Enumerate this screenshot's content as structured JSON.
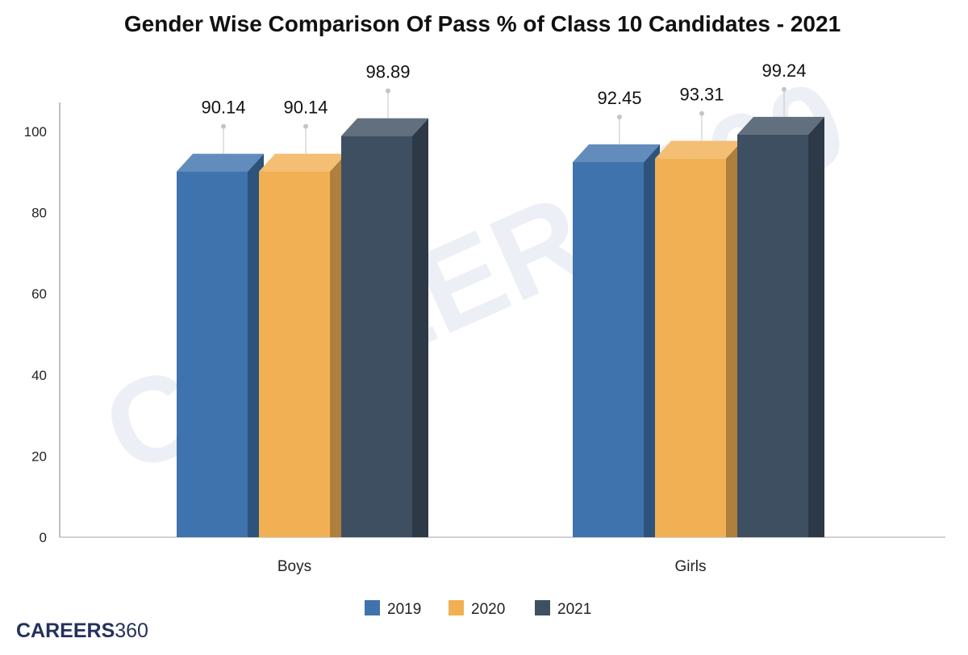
{
  "chart_data": {
    "type": "bar",
    "title": "Gender Wise Comparison Of Pass % of Class 10 Candidates - 2021",
    "xlabel": "",
    "ylabel": "",
    "categories": [
      "Boys",
      "Girls"
    ],
    "series": [
      {
        "name": "2019",
        "values": [
          90.14,
          92.45
        ],
        "color": "#3f73ad"
      },
      {
        "name": "2020",
        "values": [
          90.14,
          93.31
        ],
        "color": "#f2b055"
      },
      {
        "name": "2021",
        "values": [
          98.89,
          99.24
        ],
        "color": "#3f4f62"
      }
    ],
    "ylim": [
      0,
      100
    ],
    "yticks": [
      0,
      20,
      40,
      60,
      80,
      100
    ],
    "grid": false,
    "legend": "bottom",
    "three_d": true
  },
  "branding": {
    "watermark": "CAREERS360",
    "logo_bold": "CAREERS",
    "logo_light": "360"
  }
}
